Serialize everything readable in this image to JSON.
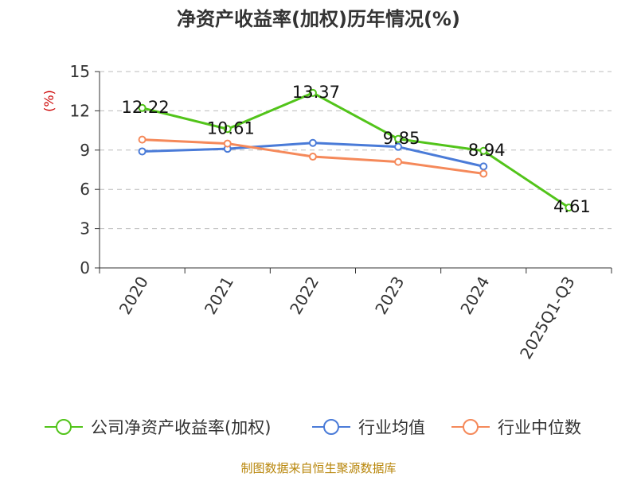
{
  "title": "净资产收益率(加权)历年情况(%)",
  "unit_label": "(%)",
  "source": "制图数据来自恒生聚源数据库",
  "chart_data": {
    "type": "line",
    "title": "净资产收益率(加权)历年情况(%)",
    "xlabel": "",
    "ylabel": "(%)",
    "categories": [
      "2020",
      "2021",
      "2022",
      "2023",
      "2024",
      "2025Q1-Q3"
    ],
    "yticks": [
      0,
      3,
      6,
      9,
      12,
      15
    ],
    "ylim": [
      0,
      15
    ],
    "grid": true,
    "legend_position": "bottom",
    "series": [
      {
        "name": "公司净资产收益率(加权)",
        "color": "#52c41a",
        "values": [
          12.22,
          10.61,
          13.37,
          9.85,
          8.94,
          4.61
        ],
        "labels": [
          "12.22",
          "10.61",
          "13.37",
          "9.85",
          "8.94",
          "4.61"
        ]
      },
      {
        "name": "行业均值",
        "color": "#4a7bd8",
        "values": [
          8.9,
          9.1,
          9.55,
          9.25,
          7.75,
          null
        ]
      },
      {
        "name": "行业中位数",
        "color": "#f5895a",
        "values": [
          9.8,
          9.5,
          8.5,
          8.1,
          7.2,
          null
        ]
      }
    ]
  }
}
